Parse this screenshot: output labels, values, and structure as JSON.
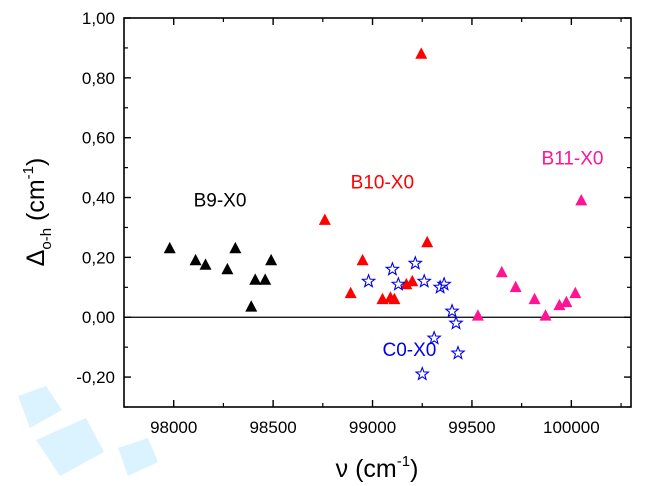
{
  "chart_data": {
    "type": "scatter",
    "xlabel": {
      "symbol": "ν",
      "unit": "(cm",
      "exp": "-1",
      "close": ")"
    },
    "ylabel": {
      "symbol": "Δ",
      "sub": "o-h",
      "unit": "(cm",
      "exp": "-1",
      "close": ")"
    },
    "xlim": [
      97750,
      100300
    ],
    "ylim": [
      -0.3,
      1.0
    ],
    "xticks": [
      98000,
      98500,
      99000,
      99500,
      100000
    ],
    "xtick_labels": [
      "98000",
      "98500",
      "99000",
      "99500",
      "100000"
    ],
    "yticks": [
      -0.2,
      0.0,
      0.2,
      0.4,
      0.6,
      0.8,
      1.0
    ],
    "ytick_labels": [
      "-0,20",
      "0,00",
      "0,20",
      "0,40",
      "0,60",
      "0,80",
      "1,00"
    ],
    "reference_line_y": 0.0,
    "grid": false,
    "series": [
      {
        "name": "B9-X0",
        "marker": "triangle",
        "color": "#000000",
        "label_x": 98100,
        "label_y": 0.37,
        "x": [
          97980,
          98110,
          98160,
          98270,
          98310,
          98390,
          98410,
          98460,
          98490
        ],
        "y": [
          0.23,
          0.19,
          0.175,
          0.16,
          0.23,
          0.035,
          0.125,
          0.125,
          0.19
        ]
      },
      {
        "name": "B10-X0",
        "marker": "triangle",
        "color": "#ff0000",
        "label_x": 98890,
        "label_y": 0.43,
        "x": [
          98760,
          98890,
          98950,
          99050,
          99090,
          99110,
          99170,
          99200,
          99245,
          99275
        ],
        "y": [
          0.325,
          0.08,
          0.19,
          0.06,
          0.065,
          0.06,
          0.11,
          0.12,
          0.88,
          0.25
        ]
      },
      {
        "name": "B11-X0",
        "marker": "triangle",
        "color": "#ff1493",
        "label_x": 99850,
        "label_y": 0.51,
        "x": [
          99530,
          99650,
          99720,
          99815,
          99870,
          99940,
          99975,
          100020,
          100050
        ],
        "y": [
          0.005,
          0.15,
          0.1,
          0.06,
          0.005,
          0.04,
          0.05,
          0.08,
          0.39
        ]
      },
      {
        "name": "C0-X0",
        "marker": "star",
        "color": "#0000ee",
        "label_x": 99050,
        "label_y": -0.13,
        "x": [
          98980,
          99100,
          99130,
          99215,
          99260,
          99340,
          99360,
          99400,
          99420,
          99430,
          99310,
          99250
        ],
        "y": [
          0.12,
          0.16,
          0.11,
          0.18,
          0.12,
          0.1,
          0.11,
          0.02,
          -0.02,
          -0.12,
          -0.07,
          -0.19
        ]
      }
    ]
  }
}
